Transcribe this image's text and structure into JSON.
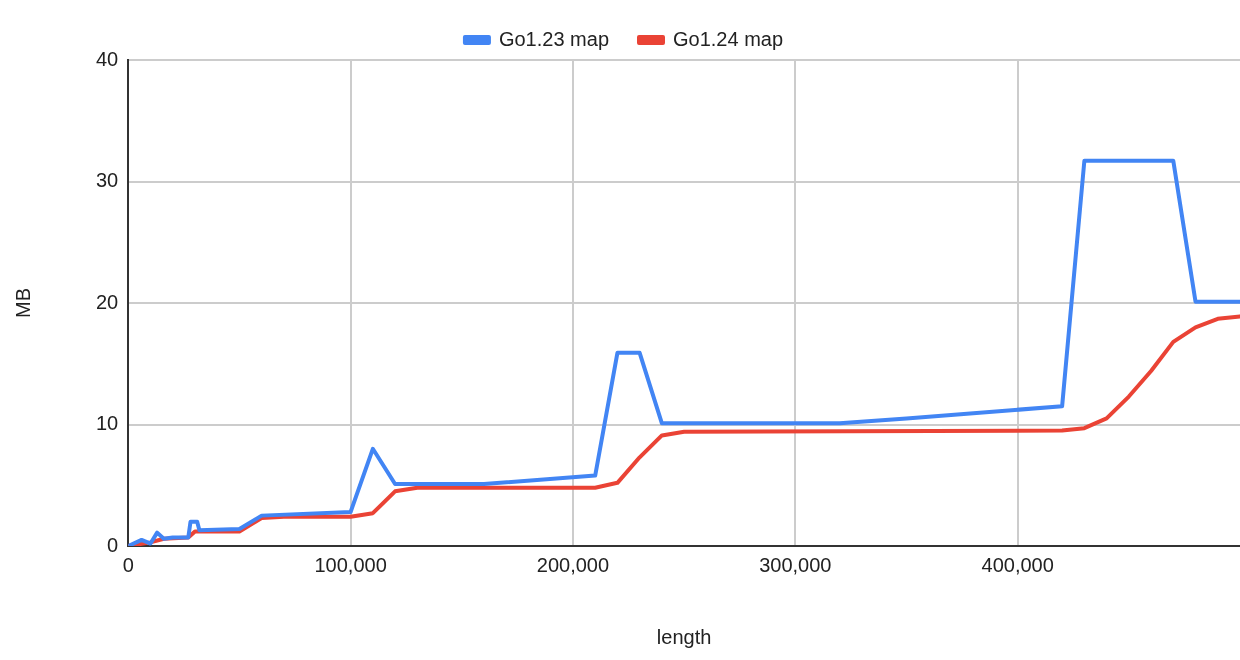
{
  "chart_data": {
    "type": "line",
    "xlabel": "length",
    "ylabel": "MB",
    "xlim": [
      0,
      500000
    ],
    "xticks": [
      {
        "value": 0,
        "label": "0"
      },
      {
        "value": 100000,
        "label": "100,000"
      },
      {
        "value": 200000,
        "label": "200,000"
      },
      {
        "value": 300000,
        "label": "300,000"
      },
      {
        "value": 400000,
        "label": "400,000"
      }
    ],
    "ylim": [
      0,
      40
    ],
    "yticks": [
      0,
      10,
      20,
      30,
      40
    ],
    "grid": true,
    "legend": "top",
    "marker": "none",
    "series": [
      {
        "name": "Go1.23 map",
        "color": "#4285f4",
        "x": [
          0,
          6000,
          10000,
          13000,
          16000,
          20000,
          27000,
          28000,
          31000,
          32000,
          50000,
          60000,
          100000,
          110000,
          120000,
          160000,
          210000,
          220000,
          230000,
          240000,
          320000,
          350000,
          420000,
          430000,
          470000,
          480000,
          500000
        ],
        "values": [
          0,
          0.5,
          0.2,
          1.1,
          0.6,
          0.7,
          0.7,
          2.0,
          2.0,
          1.3,
          1.4,
          2.5,
          2.8,
          8.0,
          5.1,
          5.1,
          5.8,
          15.9,
          15.9,
          10.1,
          10.1,
          10.5,
          11.5,
          31.7,
          31.7,
          20.1,
          20.1
        ]
      },
      {
        "name": "Go1.24 map",
        "color": "#ea4335",
        "x": [
          0,
          10000,
          16000,
          27000,
          30000,
          50000,
          60000,
          70000,
          100000,
          110000,
          120000,
          130000,
          210000,
          220000,
          230000,
          240000,
          250000,
          420000,
          430000,
          440000,
          450000,
          460000,
          470000,
          480000,
          490000,
          500000
        ],
        "values": [
          0,
          0.3,
          0.6,
          0.7,
          1.2,
          1.2,
          2.3,
          2.4,
          2.4,
          2.7,
          4.5,
          4.8,
          4.8,
          5.2,
          7.3,
          9.1,
          9.4,
          9.5,
          9.7,
          10.5,
          12.3,
          14.4,
          16.8,
          18.0,
          18.7,
          18.9
        ]
      }
    ]
  }
}
